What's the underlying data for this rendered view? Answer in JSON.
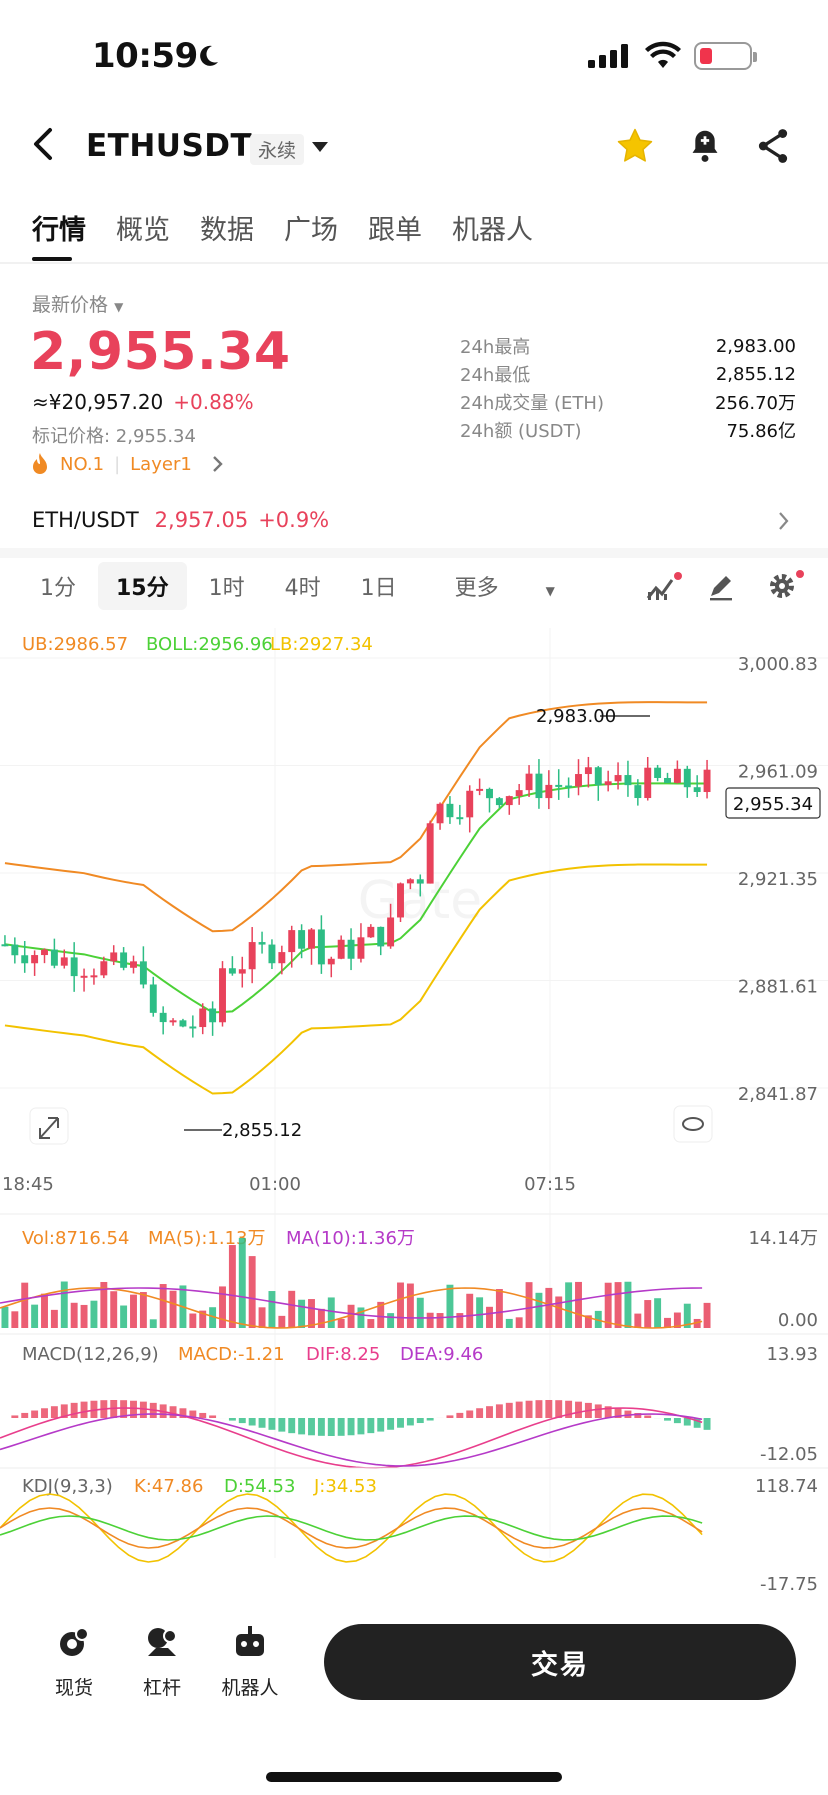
{
  "status": {
    "time": "10:59"
  },
  "header": {
    "symbol": "ETHUSDT",
    "contract_type": "永续"
  },
  "tabs": [
    "行情",
    "概览",
    "数据",
    "广场",
    "跟单",
    "机器人"
  ],
  "ticker": {
    "last_label": "最新价格",
    "last_price": "2,955.34",
    "cny": "≈¥20,957.20",
    "change_pct": "+0.88%",
    "mark_price": "标记价格: 2,955.34",
    "rank": "NO.1",
    "sector": "Layer1",
    "stats": [
      {
        "k": "24h最高",
        "v": "2,983.00"
      },
      {
        "k": "24h最低",
        "v": "2,855.12"
      },
      {
        "k": "24h成交量 (ETH)",
        "v": "256.70万"
      },
      {
        "k": "24h额 (USDT)",
        "v": "75.86亿"
      }
    ]
  },
  "spot": {
    "pair": "ETH/USDT",
    "price": "2,957.05",
    "pct": "+0.9%"
  },
  "intervals": [
    "1分",
    "15分",
    "1时",
    "4时",
    "1日",
    "更多"
  ],
  "active_interval": "15分",
  "colors": {
    "up": "#e8425b",
    "down": "#2dbd85",
    "ub": "#f08a24",
    "mid": "#4cd137",
    "lb": "#f2c200",
    "dea": "#b53ac8"
  },
  "chart_data": [
    {
      "type": "candlestick",
      "indicator_labels": [
        "UB:2986.57",
        "BOLL:2956.96",
        "LB:2927.34"
      ],
      "y_ticks": [
        "3,000.83",
        "2,961.09",
        "2,921.35",
        "2,881.61",
        "2,841.87"
      ],
      "ylim": [
        2841.87,
        3000.83
      ],
      "x_ticks": [
        "18:45",
        "01:00",
        "07:15"
      ],
      "high_annotation": "2,983.00",
      "low_annotation": "2,855.12",
      "last_price_tag": "2,955.34"
    },
    {
      "type": "bar",
      "indicator_labels": [
        "Vol:8716.54",
        "MA(5):1.13万",
        "MA(10):1.36万"
      ],
      "y_ticks": [
        "14.14万",
        "0.00"
      ]
    },
    {
      "type": "macd",
      "indicator_labels": [
        "MACD(12,26,9)",
        "MACD:-1.21",
        "DIF:8.25",
        "DEA:9.46"
      ],
      "y_ticks": [
        "13.93",
        "-12.05"
      ]
    },
    {
      "type": "line",
      "indicator_labels": [
        "KDJ(9,3,3)",
        "K:47.86",
        "D:54.53",
        "J:34.53"
      ],
      "y_ticks": [
        "118.74",
        "-17.75"
      ]
    }
  ],
  "bottom_nav": {
    "spot": "现货",
    "margin": "杠杆",
    "bot": "机器人",
    "trade": "交易"
  }
}
